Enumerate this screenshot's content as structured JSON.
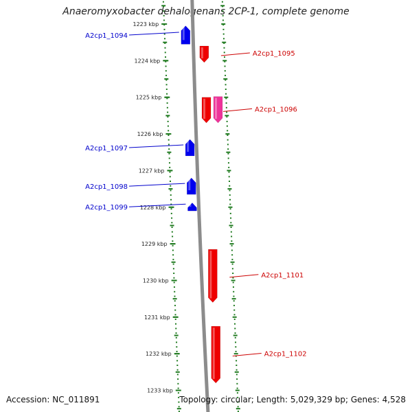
{
  "title": "Anaeromyxobacter dehalogenans 2CP-1, complete genome",
  "footer": {
    "accession": "Accession: NC_011891",
    "summary": "Topology: circular; Length: 5,029,329 bp; Genes: 4,528"
  },
  "colors": {
    "tick": "#1f7a1f",
    "backbone": "#8c8c8c",
    "forward_gene": "#0000ee",
    "reverse_gene": "#ee0000",
    "highlight_gene": "#ee3399",
    "forward_label": "#0000cc",
    "reverse_label": "#cc0000"
  },
  "scale": {
    "unit": "kbp",
    "ticks": [
      {
        "value": 1223,
        "label": "1223 kbp"
      },
      {
        "value": 1224,
        "label": "1224 kbp"
      },
      {
        "value": 1225,
        "label": "1225 kbp"
      },
      {
        "value": 1226,
        "label": "1226 kbp"
      },
      {
        "value": 1227,
        "label": "1227 kbp"
      },
      {
        "value": 1228,
        "label": "1228 kbp"
      },
      {
        "value": 1229,
        "label": "1229 kbp"
      },
      {
        "value": 1230,
        "label": "1230 kbp"
      },
      {
        "value": 1231,
        "label": "1231 kbp"
      },
      {
        "value": 1232,
        "label": "1232 kbp"
      },
      {
        "value": 1233,
        "label": "1233 kbp"
      }
    ]
  },
  "genes": [
    {
      "id": "g1094",
      "label": "A2cp1_1094",
      "strand": "forward",
      "start": 1223.05,
      "end": 1223.55,
      "color": "#0000ee"
    },
    {
      "id": "g1095",
      "label": "A2cp1_1095",
      "strand": "reverse",
      "start": 1223.6,
      "end": 1224.05,
      "color": "#ee0000"
    },
    {
      "id": "g1096a",
      "label": "A2cp1_1096",
      "strand": "reverse",
      "start": 1225.0,
      "end": 1225.7,
      "color": "#ee0000"
    },
    {
      "id": "g1096b",
      "label": "",
      "strand": "reverse",
      "start": 1224.98,
      "end": 1225.7,
      "color": "#ee3399"
    },
    {
      "id": "g1097",
      "label": "A2cp1_1097",
      "strand": "forward",
      "start": 1226.15,
      "end": 1226.6,
      "color": "#0000ee"
    },
    {
      "id": "g1098",
      "label": "A2cp1_1098",
      "strand": "forward",
      "start": 1227.2,
      "end": 1227.65,
      "color": "#0000ee"
    },
    {
      "id": "g1099",
      "label": "A2cp1_1099",
      "strand": "forward",
      "start": 1227.88,
      "end": 1228.1,
      "color": "#0000ee"
    },
    {
      "id": "g1101",
      "label": "A2cp1_1101",
      "strand": "reverse",
      "start": 1229.15,
      "end": 1230.6,
      "color": "#ee0000"
    },
    {
      "id": "g1102",
      "label": "A2cp1_1102",
      "strand": "reverse",
      "start": 1231.25,
      "end": 1232.8,
      "color": "#ee0000"
    }
  ]
}
